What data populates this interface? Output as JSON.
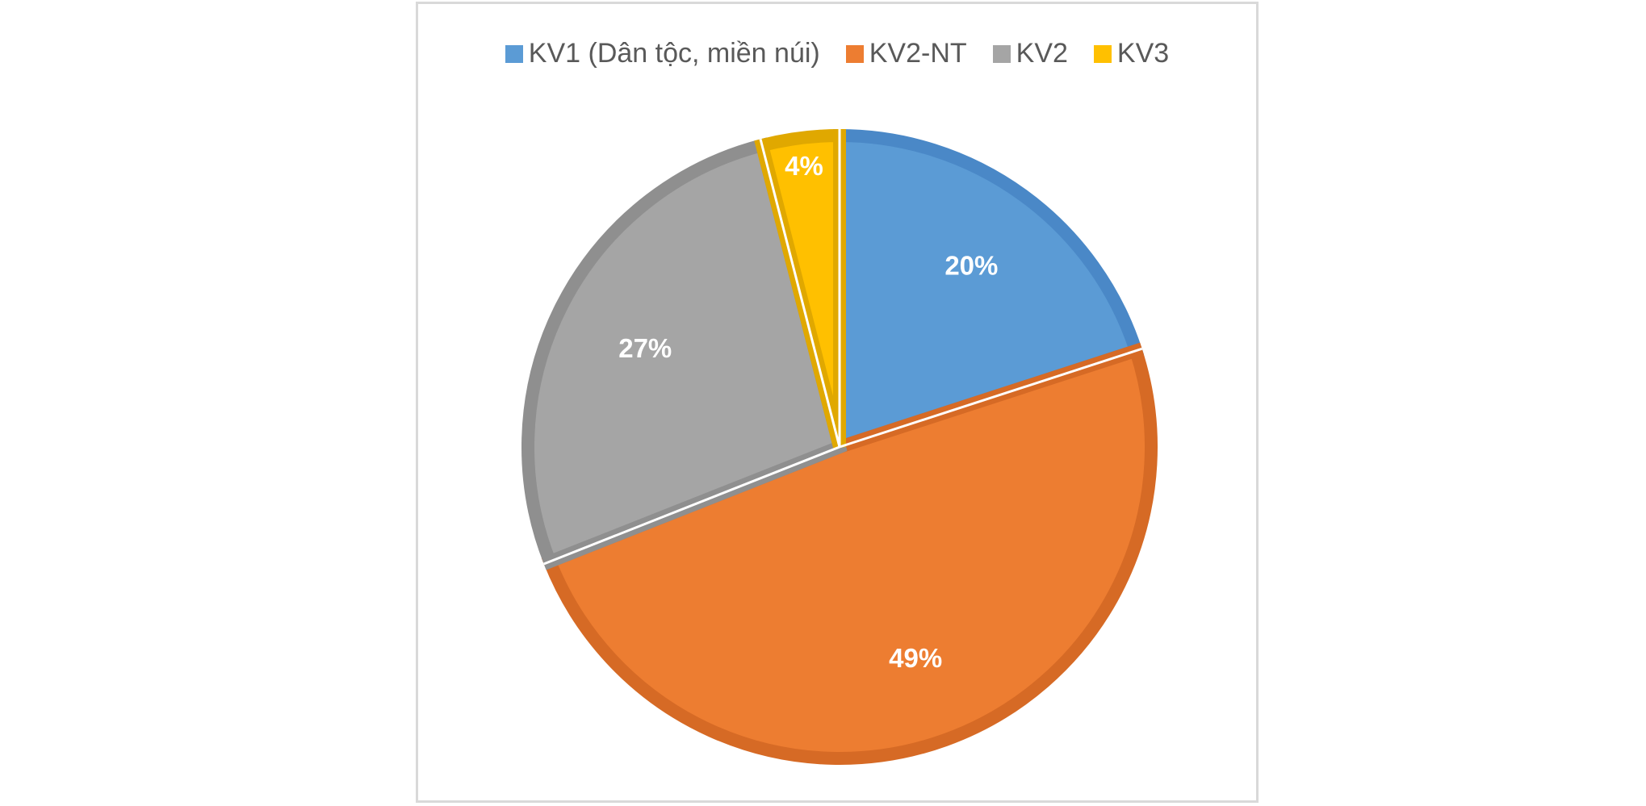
{
  "chart_data": {
    "type": "pie",
    "title": "",
    "categories": [
      "KV1 (Dân tộc, miền núi)",
      "KV2-NT",
      "KV2",
      "KV3"
    ],
    "values": [
      20,
      49,
      27,
      4
    ],
    "data_labels": [
      "20%",
      "49%",
      "27%",
      "4%"
    ],
    "colors": [
      "#5b9bd5",
      "#ed7d31",
      "#a5a5a5",
      "#ffc000"
    ],
    "border_colors": [
      "#4a88c7",
      "#d66a25",
      "#8f8f8f",
      "#e0a800"
    ],
    "legend_position": "top",
    "start_angle_deg": 0,
    "direction": "clockwise"
  }
}
